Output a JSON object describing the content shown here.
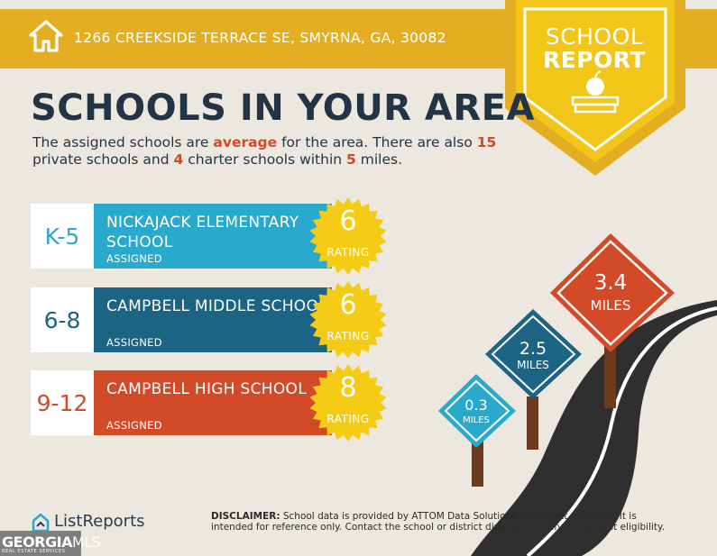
{
  "header": {
    "address": "1266 CREEKSIDE TERRACE SE, SMYRNA, GA, 30082",
    "icon": "home-icon"
  },
  "badge": {
    "line1": "SCHOOL",
    "line2": "REPORT",
    "icon": "apple-on-book-icon"
  },
  "title": "SCHOOLS IN YOUR AREA",
  "intro": {
    "part1": "The assigned schools are ",
    "quality": "average",
    "part2": " for the area. There are also ",
    "private_count": "15",
    "part3": " private schools and ",
    "charter_count": "4",
    "part4": " charter schools within ",
    "radius": "5",
    "part5": " miles."
  },
  "schools": [
    {
      "grades": "K-5",
      "name": "NICKAJACK ELEMENTARY SCHOOL",
      "status": "ASSIGNED",
      "rating": "6",
      "rating_label": "RATING",
      "color": "#29a9cc",
      "grade_color": "#29a9cc"
    },
    {
      "grades": "6-8",
      "name": "CAMPBELL MIDDLE SCHOOL",
      "status": "ASSIGNED",
      "rating": "6",
      "rating_label": "RATING",
      "color": "#1b6484",
      "grade_color": "#1b6484"
    },
    {
      "grades": "9-12",
      "name": "CAMPBELL HIGH SCHOOL",
      "status": "ASSIGNED",
      "rating": "8",
      "rating_label": "RATING",
      "color": "#d24a28",
      "grade_color": "#d24a28"
    }
  ],
  "road_signs": [
    {
      "value": "0.3",
      "unit": "MILES",
      "color": "#29a9cc"
    },
    {
      "value": "2.5",
      "unit": "MILES",
      "color": "#1b6484"
    },
    {
      "value": "3.4",
      "unit": "MILES",
      "color": "#d24a28"
    }
  ],
  "footer": {
    "logo_text": "ListReports",
    "disclaimer_label": "DISCLAIMER:",
    "disclaimer_text": " School data is provided by ATTOM Data Solutions and agent selection. It is intended for reference only. Contact the school or district directly to verify enrollment eligibility."
  },
  "watermark": {
    "brand_a": "GEORGIA",
    "brand_b": "MLS",
    "sub": "REAL ESTATE SERVICES"
  },
  "colors": {
    "gold": "#e3ae22",
    "badge_yellow": "#f2c519",
    "navy": "#233445",
    "seal": "#f4cc16",
    "road": "#2f2f2f"
  }
}
